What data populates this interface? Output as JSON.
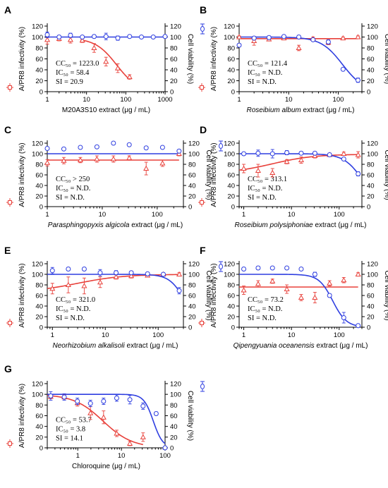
{
  "axis_text": {
    "left_ylabel": "A/PR8 infectivity (%)",
    "right_ylabel": "Cell viability (%)",
    "xlabel_suffix": " extract (μg / mL)",
    "chloroquine_suffix": " (μg / mL)"
  },
  "colors": {
    "infectivity": "#e8403a",
    "viability": "#2f3fe0",
    "axis": "#000000"
  },
  "chart_data": [
    {
      "type": "scatter",
      "panel": "A",
      "extract": "M20A3S10",
      "italic_name": false,
      "xlabel": "M20A3S10 extract (μg / mL)",
      "x_scale": "log",
      "xlim": [
        1,
        1000
      ],
      "x_ticks": [
        1,
        10,
        100,
        1000
      ],
      "x_tick_labels": [
        "1",
        "10",
        "100",
        "1000"
      ],
      "ylim": [
        0,
        120
      ],
      "y_ticks": [
        0,
        20,
        40,
        60,
        80,
        100,
        120
      ],
      "stats": {
        "cc50": "CC₅₀ = 1223.0",
        "ic50": "IC₅₀ = 58.4",
        "si": "SI = 20.9"
      },
      "series": [
        {
          "marker": "triangle",
          "x": [
            1,
            2,
            3.9,
            7.8,
            15.6,
            31.3,
            62.5,
            125
          ],
          "y": [
            95,
            97,
            95,
            94,
            80,
            55,
            43,
            27
          ],
          "err": [
            8,
            4,
            6,
            4,
            8,
            8,
            8,
            4
          ]
        },
        {
          "marker": "circle",
          "x": [
            1,
            2,
            3.9,
            7.8,
            15.6,
            31.3,
            62.5,
            125,
            250,
            500,
            1000
          ],
          "y": [
            104,
            100,
            103,
            100,
            101,
            101,
            98,
            101,
            100,
            100,
            101
          ],
          "err": [
            5,
            3,
            4,
            2,
            3,
            6,
            4,
            2,
            2,
            2,
            2
          ]
        }
      ],
      "fits": [
        {
          "kind": "decay",
          "x": [
            7,
            125
          ],
          "ec50": 58.4,
          "top": 98,
          "hill": 1.6
        },
        {
          "kind": "flat",
          "x": [
            1,
            1000
          ],
          "level": 100
        }
      ]
    },
    {
      "type": "scatter",
      "panel": "B",
      "extract": "Roseibium album",
      "italic_name": true,
      "xlabel": "Roseibium album extract (μg / mL)",
      "x_scale": "log",
      "xlim": [
        1,
        300
      ],
      "x_ticks": [
        1,
        10,
        100
      ],
      "x_tick_labels": [
        "1",
        "10",
        "100"
      ],
      "ylim": [
        0,
        120
      ],
      "y_ticks": [
        0,
        20,
        40,
        60,
        80,
        100,
        120
      ],
      "stats": {
        "cc50": "CC₅₀ = 121.4",
        "ic50": "IC₅₀ = N.D.",
        "si": "SI = N.D."
      },
      "series": [
        {
          "marker": "triangle",
          "x": [
            1,
            2,
            4,
            8,
            16,
            31,
            63,
            125,
            250
          ],
          "y": [
            100,
            93,
            96,
            98,
            80,
            97,
            90,
            98,
            100
          ],
          "err": [
            2,
            8,
            3,
            3,
            5,
            3,
            4,
            2,
            2
          ]
        },
        {
          "marker": "circle",
          "x": [
            1,
            2,
            4,
            8,
            16,
            31,
            63,
            125,
            250
          ],
          "y": [
            85,
            98,
            99,
            101,
            100,
            95,
            91,
            41,
            21
          ],
          "err": [
            3,
            3,
            3,
            2,
            3,
            2,
            4,
            2,
            4
          ]
        }
      ],
      "fits": [
        {
          "kind": "flat",
          "x": [
            1,
            250
          ],
          "level": 97
        },
        {
          "kind": "decay",
          "x": [
            1,
            250
          ],
          "ec50": 121.4,
          "top": 100,
          "hill": 2.0
        }
      ]
    },
    {
      "type": "scatter",
      "panel": "C",
      "extract": "Parasphingopyxis algicola",
      "italic_name": true,
      "xlabel": "Parasphingopyxis algicola extract (μg / mL)",
      "x_scale": "log",
      "xlim": [
        1,
        300
      ],
      "x_ticks": [
        1,
        10,
        100
      ],
      "x_tick_labels": [
        "1",
        "10",
        "100"
      ],
      "ylim": [
        0,
        120
      ],
      "y_ticks": [
        0,
        20,
        40,
        60,
        80,
        100,
        120
      ],
      "stats": {
        "cc50": "CC₅₀ > 250",
        "ic50": "IC₅₀ = N.D.",
        "si": "SI = N.D."
      },
      "series": [
        {
          "marker": "triangle",
          "x": [
            1,
            2,
            4,
            8,
            16,
            31,
            63,
            125,
            250
          ],
          "y": [
            83,
            87,
            88,
            90,
            90,
            92,
            72,
            82,
            100
          ],
          "err": [
            6,
            6,
            5,
            6,
            6,
            4,
            12,
            6,
            4
          ]
        },
        {
          "marker": "circle",
          "x": [
            1,
            2,
            4,
            8,
            16,
            31,
            63,
            125,
            250
          ],
          "y": [
            110,
            109,
            112,
            113,
            120,
            117,
            111,
            112,
            105
          ],
          "err": [
            2,
            2,
            2,
            2,
            2,
            2,
            2,
            2,
            2
          ]
        }
      ],
      "fits": [
        {
          "kind": "flat",
          "x": [
            1,
            250
          ],
          "level": 88
        },
        {
          "kind": "flat",
          "x": [
            1,
            250
          ],
          "level": 100
        }
      ]
    },
    {
      "type": "scatter",
      "panel": "D",
      "extract": "Roseibium polysiphoniae",
      "italic_name": true,
      "xlabel": "Roseibium polysiphoniae extract (μg / mL)",
      "x_scale": "log",
      "xlim": [
        0.8,
        300
      ],
      "x_ticks": [
        1,
        10,
        100
      ],
      "x_tick_labels": [
        "1",
        "10",
        "100"
      ],
      "ylim": [
        0,
        120
      ],
      "y_ticks": [
        0,
        20,
        40,
        60,
        80,
        100,
        120
      ],
      "stats": {
        "cc50": "CC₅₀ = 313.1",
        "ic50": "IC₅₀ = N.D.",
        "si": "SI = N.D."
      },
      "series": [
        {
          "marker": "triangle",
          "x": [
            1,
            2,
            4,
            8,
            16,
            31,
            63,
            125,
            250
          ],
          "y": [
            72,
            68,
            64,
            85,
            88,
            96,
            98,
            100,
            98
          ],
          "err": [
            8,
            12,
            8,
            4,
            6,
            4,
            3,
            3,
            6
          ]
        },
        {
          "marker": "circle",
          "x": [
            1,
            2,
            4,
            8,
            16,
            31,
            63,
            125,
            250
          ],
          "y": [
            100,
            101,
            100,
            102,
            101,
            101,
            98,
            90,
            62
          ],
          "err": [
            3,
            6,
            8,
            4,
            3,
            2,
            3,
            3,
            4
          ]
        }
      ],
      "fits": [
        {
          "kind": "rise",
          "x": [
            0.8,
            250
          ],
          "bottom": 63,
          "top": 99,
          "ec50": 4,
          "hill": 1.0
        },
        {
          "kind": "decay",
          "x": [
            0.8,
            250
          ],
          "ec50": 313.1,
          "top": 100,
          "hill": 2.2
        }
      ]
    },
    {
      "type": "scatter",
      "panel": "E",
      "extract": "Neorhizobium alkalisoli",
      "italic_name": true,
      "xlabel": "Neorhizobium alkalisoli extract (μg / mL)",
      "x_scale": "log",
      "xlim": [
        0.8,
        300
      ],
      "x_ticks": [
        1,
        10,
        100
      ],
      "x_tick_labels": [
        "1",
        "10",
        "100"
      ],
      "ylim": [
        0,
        120
      ],
      "y_ticks": [
        0,
        20,
        40,
        60,
        80,
        100,
        120
      ],
      "stats": {
        "cc50": "CC₅₀ = 321.0",
        "ic50": "IC₅₀ = N.D.",
        "si": "SI = N.D."
      },
      "series": [
        {
          "marker": "triangle",
          "x": [
            1,
            2,
            4,
            8,
            16,
            31,
            63,
            125,
            250
          ],
          "y": [
            73,
            80,
            78,
            85,
            95,
            97,
            98,
            100,
            100
          ],
          "err": [
            10,
            15,
            15,
            10,
            4,
            4,
            2,
            2,
            3
          ]
        },
        {
          "marker": "circle",
          "x": [
            1,
            2,
            4,
            8,
            16,
            31,
            63,
            125,
            250
          ],
          "y": [
            107,
            110,
            110,
            103,
            103,
            103,
            101,
            100,
            69
          ],
          "err": [
            6,
            3,
            3,
            6,
            4,
            3,
            2,
            3,
            6
          ]
        }
      ],
      "fits": [
        {
          "kind": "rise",
          "x": [
            0.8,
            250
          ],
          "bottom": 66,
          "top": 100,
          "ec50": 3,
          "hill": 1.0
        },
        {
          "kind": "decay",
          "x": [
            0.8,
            250
          ],
          "ec50": 321.0,
          "top": 100,
          "hill": 3.0
        }
      ]
    },
    {
      "type": "scatter",
      "panel": "F",
      "extract": "Qipengyuania oceanensis",
      "italic_name": true,
      "xlabel": "Qipengyuania oceanensis extract (μg / mL)",
      "x_scale": "log",
      "xlim": [
        0.8,
        300
      ],
      "x_ticks": [
        1,
        10,
        100
      ],
      "x_tick_labels": [
        "1",
        "10",
        "100"
      ],
      "ylim": [
        0,
        120
      ],
      "y_ticks": [
        0,
        20,
        40,
        60,
        80,
        100,
        120
      ],
      "stats": {
        "cc50": "CC₅₀ = 73.2",
        "ic50": "IC₅₀ = N.D.",
        "si": "SI = N.D."
      },
      "series": [
        {
          "marker": "triangle",
          "x": [
            1,
            2,
            4,
            8,
            16,
            31,
            63,
            125,
            250
          ],
          "y": [
            70,
            82,
            87,
            72,
            56,
            56,
            83,
            89,
            100
          ],
          "err": [
            8,
            6,
            4,
            8,
            6,
            10,
            5,
            5,
            3
          ]
        },
        {
          "marker": "circle",
          "x": [
            1,
            2,
            4,
            8,
            16,
            31,
            63,
            125,
            250
          ],
          "y": [
            110,
            112,
            112,
            112,
            110,
            100,
            60,
            18,
            3
          ],
          "err": [
            3,
            3,
            2,
            2,
            2,
            4,
            3,
            10,
            2
          ]
        }
      ],
      "fits": [
        {
          "kind": "flat",
          "x": [
            0.8,
            250
          ],
          "level": 76
        },
        {
          "kind": "decay",
          "x": [
            0.8,
            250
          ],
          "ec50": 73.2,
          "top": 100,
          "hill": 3.0
        }
      ]
    },
    {
      "type": "scatter",
      "panel": "G",
      "extract": "Chloroquine",
      "italic_name": false,
      "xlabel": "Chloroquine (μg / mL)",
      "x_scale": "log",
      "xlim": [
        0.2,
        100
      ],
      "x_ticks": [
        1,
        10,
        100
      ],
      "x_tick_labels": [
        "1",
        "10",
        "100"
      ],
      "ylim": [
        0,
        120
      ],
      "y_ticks": [
        0,
        20,
        40,
        60,
        80,
        100,
        120
      ],
      "stats": {
        "cc50": "CC₅₀ = 53.7",
        "ic50": "IC₅₀ = 3.8",
        "si": "SI = 14.1"
      },
      "series": [
        {
          "marker": "triangle",
          "x": [
            0.24,
            0.49,
            0.98,
            1.95,
            3.9,
            7.8,
            15.6,
            31.3
          ],
          "y": [
            96,
            95,
            84,
            65,
            57,
            27,
            8,
            20
          ],
          "err": [
            4,
            4,
            6,
            12,
            12,
            6,
            4,
            8
          ]
        },
        {
          "marker": "circle",
          "x": [
            0.24,
            0.49,
            0.98,
            1.95,
            3.9,
            7.8,
            15.6,
            31.3,
            62.5,
            100
          ],
          "y": [
            97,
            95,
            87,
            83,
            87,
            93,
            90,
            78,
            64,
            0
          ],
          "err": [
            8,
            6,
            6,
            6,
            6,
            6,
            8,
            6,
            3,
            2
          ]
        }
      ],
      "fits": [
        {
          "kind": "decay",
          "x": [
            0.2,
            31.3
          ],
          "ec50": 3.8,
          "top": 100,
          "hill": 1.3
        },
        {
          "kind": "decay",
          "x": [
            0.2,
            100
          ],
          "ec50": 53.7,
          "top": 100,
          "hill": 4.0
        }
      ]
    }
  ]
}
